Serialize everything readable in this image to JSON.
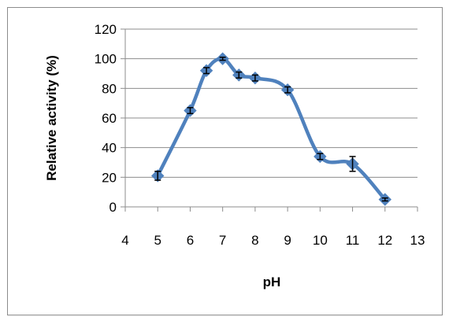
{
  "chart_data": {
    "type": "line",
    "xlabel": "pH",
    "ylabel": "Relative activity (%)",
    "xlim": [
      4,
      13
    ],
    "ylim": [
      0,
      120
    ],
    "x_ticks": [
      "4",
      "5",
      "6",
      "7",
      "8",
      "9",
      "10",
      "11",
      "12",
      "13"
    ],
    "y_ticks": [
      "0",
      "20",
      "40",
      "60",
      "80",
      "100",
      "120"
    ],
    "grid": "horizontal",
    "legend": "none",
    "series": [
      {
        "color": "#4f81bd",
        "marker": "diamond",
        "smooth": true,
        "points": [
          {
            "x": 5,
            "y": 21,
            "err": 3
          },
          {
            "x": 6,
            "y": 65,
            "err": 2
          },
          {
            "x": 6.5,
            "y": 92,
            "err": 2
          },
          {
            "x": 7,
            "y": 100,
            "err": 1
          },
          {
            "x": 7.5,
            "y": 89,
            "err": 2
          },
          {
            "x": 8,
            "y": 87,
            "err": 2
          },
          {
            "x": 9,
            "y": 79,
            "err": 2
          },
          {
            "x": 10,
            "y": 34,
            "err": 2
          },
          {
            "x": 11,
            "y": 29,
            "err": 5
          },
          {
            "x": 12,
            "y": 5,
            "err": 1
          }
        ]
      }
    ]
  }
}
